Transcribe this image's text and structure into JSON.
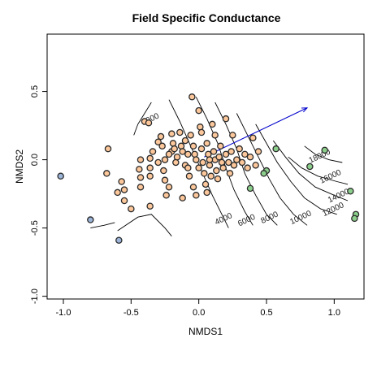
{
  "chart_data": {
    "type": "scatter",
    "title": "Field Specific Conductance",
    "xlabel": "NMDS1",
    "ylabel": "NMDS2",
    "xlim": [
      -1.12,
      1.22
    ],
    "ylim": [
      -1.02,
      0.92
    ],
    "xticks": [
      -1.0,
      -0.5,
      0.0,
      0.5,
      1.0
    ],
    "xtick_labels": [
      "-1.0",
      "-0.5",
      "0.0",
      "0.5",
      "1.0"
    ],
    "yticks": [
      -1.0,
      -0.5,
      0.0,
      0.5
    ],
    "ytick_labels": [
      "-1.0",
      "-0.5",
      "0.0",
      "0.5"
    ],
    "grid": false,
    "colors": {
      "peach": "#fcc79a",
      "green": "#8ccf8c",
      "blue": "#9bb4d8",
      "arrow": "#0000cc",
      "contour": "#000000"
    },
    "series": [
      {
        "color_key": "blue",
        "points": [
          [
            -1.02,
            -0.12
          ],
          [
            -0.8,
            -0.44
          ],
          [
            -0.59,
            -0.59
          ]
        ]
      },
      {
        "color_key": "green",
        "points": [
          [
            0.57,
            0.08
          ],
          [
            0.93,
            0.07
          ],
          [
            0.82,
            -0.05
          ],
          [
            0.5,
            -0.08
          ],
          [
            0.48,
            -0.1
          ],
          [
            0.38,
            -0.21
          ],
          [
            1.12,
            -0.23
          ],
          [
            1.16,
            -0.4
          ],
          [
            1.15,
            -0.43
          ]
        ]
      },
      {
        "color_key": "peach",
        "points": [
          [
            -0.67,
            0.08
          ],
          [
            -0.68,
            -0.1
          ],
          [
            -0.57,
            -0.16
          ],
          [
            -0.55,
            -0.22
          ],
          [
            -0.6,
            -0.24
          ],
          [
            -0.55,
            -0.3
          ],
          [
            -0.5,
            -0.36
          ],
          [
            -0.36,
            -0.34
          ],
          [
            -0.43,
            0.0
          ],
          [
            -0.44,
            -0.07
          ],
          [
            -0.43,
            -0.13
          ],
          [
            -0.43,
            -0.2
          ],
          [
            -0.36,
            -0.12
          ],
          [
            -0.36,
            -0.06
          ],
          [
            -0.36,
            0.01
          ],
          [
            -0.34,
            0.06
          ],
          [
            -0.4,
            0.28
          ],
          [
            -0.37,
            0.27
          ],
          [
            -0.3,
            0.13
          ],
          [
            -0.28,
            0.17
          ],
          [
            -0.27,
            0.1
          ],
          [
            -0.25,
            0.0
          ],
          [
            -0.26,
            -0.08
          ],
          [
            -0.25,
            -0.15
          ],
          [
            -0.22,
            -0.2
          ],
          [
            -0.24,
            -0.26
          ],
          [
            -0.2,
            0.06
          ],
          [
            -0.2,
            0.19
          ],
          [
            -0.19,
            0.12
          ],
          [
            -0.18,
            0.08
          ],
          [
            -0.17,
            -0.02
          ],
          [
            -0.16,
            0.02
          ],
          [
            -0.14,
            0.2
          ],
          [
            -0.13,
            0.1
          ],
          [
            -0.12,
            0.06
          ],
          [
            -0.1,
            0.14
          ],
          [
            -0.1,
            -0.04
          ],
          [
            -0.08,
            0.04
          ],
          [
            -0.07,
            -0.12
          ],
          [
            -0.06,
            0.18
          ],
          [
            -0.05,
            0.46
          ],
          [
            -0.04,
            0.1
          ],
          [
            -0.03,
            0.04
          ],
          [
            -0.02,
            0.0
          ],
          [
            0.0,
            0.36
          ],
          [
            0.0,
            -0.06
          ],
          [
            0.01,
            0.24
          ],
          [
            0.02,
            0.2
          ],
          [
            0.02,
            0.08
          ],
          [
            0.03,
            -0.02
          ],
          [
            0.04,
            -0.1
          ],
          [
            0.05,
            -0.18
          ],
          [
            0.06,
            0.12
          ],
          [
            0.07,
            0.04
          ],
          [
            0.08,
            -0.04
          ],
          [
            0.09,
            -0.12
          ],
          [
            0.1,
            0.26
          ],
          [
            0.11,
            0.06
          ],
          [
            0.12,
            0.0
          ],
          [
            0.13,
            -0.08
          ],
          [
            0.14,
            -0.14
          ],
          [
            0.15,
            0.02
          ],
          [
            0.16,
            0.1
          ],
          [
            0.17,
            -0.02
          ],
          [
            0.18,
            -0.06
          ],
          [
            0.2,
            0.3
          ],
          [
            0.2,
            0.04
          ],
          [
            0.22,
            -0.02
          ],
          [
            0.23,
            -0.1
          ],
          [
            0.24,
            0.06
          ],
          [
            0.25,
            0.18
          ],
          [
            0.26,
            -0.04
          ],
          [
            0.28,
            0.0
          ],
          [
            0.3,
            0.08
          ],
          [
            0.32,
            -0.02
          ],
          [
            0.34,
            0.04
          ],
          [
            0.36,
            -0.06
          ],
          [
            0.38,
            0.02
          ],
          [
            0.4,
            0.16
          ],
          [
            0.42,
            -0.04
          ],
          [
            0.44,
            0.06
          ],
          [
            -0.04,
            -0.2
          ],
          [
            -0.02,
            -0.26
          ],
          [
            0.06,
            -0.24
          ],
          [
            -0.12,
            -0.28
          ],
          [
            -0.08,
            -0.06
          ],
          [
            0.08,
            0.0
          ],
          [
            0.12,
            0.18
          ],
          [
            -0.22,
            0.04
          ],
          [
            -0.3,
            -0.02
          ]
        ]
      }
    ],
    "arrow": {
      "from": [
        0.04,
        0.02
      ],
      "to": [
        0.8,
        0.38
      ]
    },
    "contours": [
      {
        "label": "2000",
        "label_at": [
          -0.35,
          0.28
        ],
        "points": [
          [
            -0.48,
            0.18
          ],
          [
            -0.45,
            0.26
          ],
          [
            -0.4,
            0.34
          ],
          [
            -0.35,
            0.42
          ]
        ]
      },
      {
        "label": "4000",
        "label_at": [
          0.19,
          -0.45
        ],
        "points": [
          [
            -0.22,
            0.44
          ],
          [
            -0.14,
            0.28
          ],
          [
            -0.06,
            0.1
          ],
          [
            0.02,
            -0.08
          ],
          [
            0.1,
            -0.26
          ],
          [
            0.18,
            -0.42
          ],
          [
            0.22,
            -0.5
          ]
        ]
      },
      {
        "label": "6000",
        "label_at": [
          0.36,
          -0.46
        ],
        "points": [
          [
            -0.02,
            0.46
          ],
          [
            0.06,
            0.3
          ],
          [
            0.14,
            0.12
          ],
          [
            0.2,
            -0.06
          ],
          [
            0.26,
            -0.22
          ],
          [
            0.34,
            -0.38
          ],
          [
            0.4,
            -0.48
          ]
        ]
      },
      {
        "label": "8000",
        "label_at": [
          0.53,
          -0.44
        ],
        "points": [
          [
            0.12,
            0.42
          ],
          [
            0.2,
            0.26
          ],
          [
            0.28,
            0.08
          ],
          [
            0.34,
            -0.1
          ],
          [
            0.42,
            -0.26
          ],
          [
            0.5,
            -0.4
          ],
          [
            0.58,
            -0.48
          ]
        ]
      },
      {
        "label": "10000",
        "label_at": [
          0.76,
          -0.44
        ],
        "points": [
          [
            0.28,
            0.34
          ],
          [
            0.36,
            0.18
          ],
          [
            0.44,
            0.02
          ],
          [
            0.52,
            -0.14
          ],
          [
            0.6,
            -0.28
          ],
          [
            0.7,
            -0.4
          ],
          [
            0.8,
            -0.48
          ]
        ]
      },
      {
        "label": "12000",
        "label_at": [
          1.0,
          -0.38
        ],
        "points": [
          [
            0.42,
            0.26
          ],
          [
            0.5,
            0.12
          ],
          [
            0.58,
            -0.02
          ],
          [
            0.68,
            -0.16
          ],
          [
            0.78,
            -0.28
          ],
          [
            0.9,
            -0.36
          ],
          [
            1.02,
            -0.4
          ]
        ]
      },
      {
        "label": "14000",
        "label_at": [
          1.04,
          -0.28
        ],
        "points": [
          [
            0.55,
            0.14
          ],
          [
            0.64,
            0.02
          ],
          [
            0.74,
            -0.1
          ],
          [
            0.86,
            -0.2
          ],
          [
            1.0,
            -0.26
          ],
          [
            1.1,
            -0.3
          ]
        ]
      },
      {
        "label": "16000",
        "label_at": [
          0.98,
          -0.14
        ],
        "points": [
          [
            0.66,
            0.02
          ],
          [
            0.76,
            -0.06
          ],
          [
            0.88,
            -0.12
          ],
          [
            1.02,
            -0.16
          ],
          [
            1.1,
            -0.18
          ]
        ]
      },
      {
        "label": "18000",
        "label_at": [
          0.9,
          0.01
        ],
        "points": [
          [
            0.78,
            0.1
          ],
          [
            0.86,
            0.04
          ],
          [
            0.96,
            0.0
          ],
          [
            1.06,
            -0.02
          ]
        ]
      },
      {
        "label": "",
        "label_at": null,
        "points": [
          [
            -0.6,
            -0.52
          ],
          [
            -0.45,
            -0.42
          ],
          [
            -0.35,
            -0.4
          ],
          [
            -0.25,
            -0.5
          ],
          [
            -0.2,
            -0.56
          ]
        ]
      },
      {
        "label": "",
        "label_at": null,
        "points": [
          [
            -0.8,
            -0.5
          ],
          [
            -0.7,
            -0.48
          ],
          [
            -0.62,
            -0.46
          ]
        ]
      }
    ]
  }
}
